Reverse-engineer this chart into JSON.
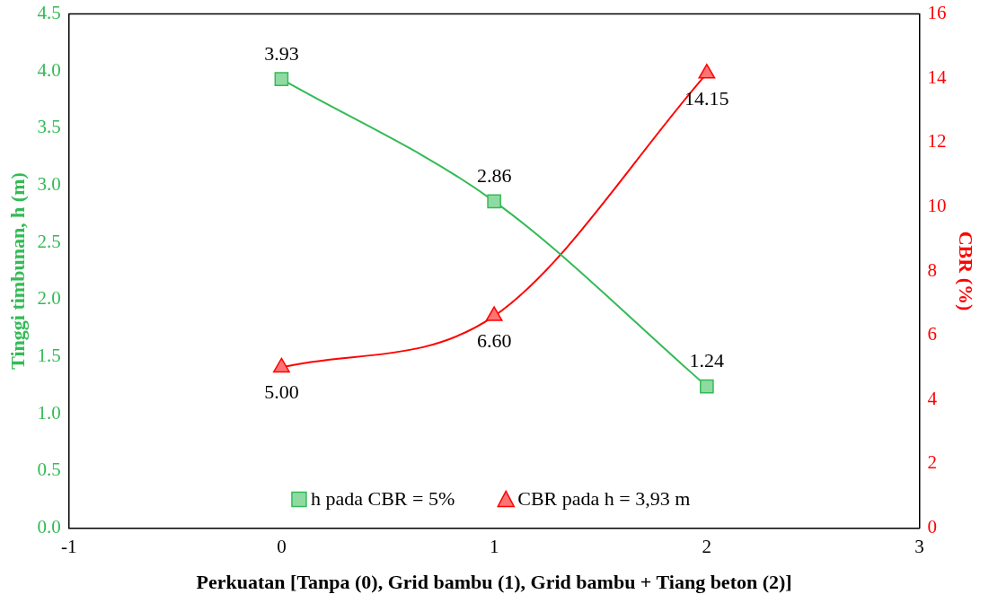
{
  "chart_data": {
    "type": "line",
    "xlabel": "Perkuatan [Tanpa (0), Grid bambu (1), Grid bambu + Tiang beton (2)]",
    "ylabel": "Tinggi timbunan, h (m)",
    "y2label": "CBR (%)",
    "x": [
      0,
      1,
      2
    ],
    "series": [
      {
        "name": "h pada CBR = 5%",
        "color": "#33bb55",
        "marker": "square",
        "values": [
          3.93,
          2.86,
          1.24
        ]
      },
      {
        "name": "CBR pada h = 3,93 m",
        "color": "#ff0000",
        "marker": "triangle",
        "axis": "y2",
        "values": [
          5.0,
          6.6,
          14.15
        ]
      }
    ],
    "value_labels": [
      [
        "3.93",
        "2.86",
        "1.24"
      ],
      [
        "5.00",
        "6.60",
        "14.15"
      ]
    ],
    "xlim": [
      -1,
      3
    ],
    "xticks": [
      -1,
      0,
      1,
      2,
      3
    ],
    "ylim": [
      0,
      4.5
    ],
    "yticks": [
      {
        "value": 0,
        "label": "0.0"
      },
      {
        "value": 0.5,
        "label": "0.5"
      },
      {
        "value": 1,
        "label": "1.0"
      },
      {
        "value": 1.5,
        "label": "1.5"
      },
      {
        "value": 2,
        "label": "2.0"
      },
      {
        "value": 2.5,
        "label": "2.5"
      },
      {
        "value": 3,
        "label": "3.0"
      },
      {
        "value": 3.5,
        "label": "3.5"
      },
      {
        "value": 4,
        "label": "4.0"
      },
      {
        "value": 4.5,
        "label": "4.5"
      }
    ],
    "y2lim": [
      0,
      16
    ],
    "y2ticks": [
      0,
      2,
      4,
      6,
      8,
      10,
      12,
      14,
      16
    ],
    "legend": "bottom",
    "grid": false,
    "line_style": "solid"
  }
}
